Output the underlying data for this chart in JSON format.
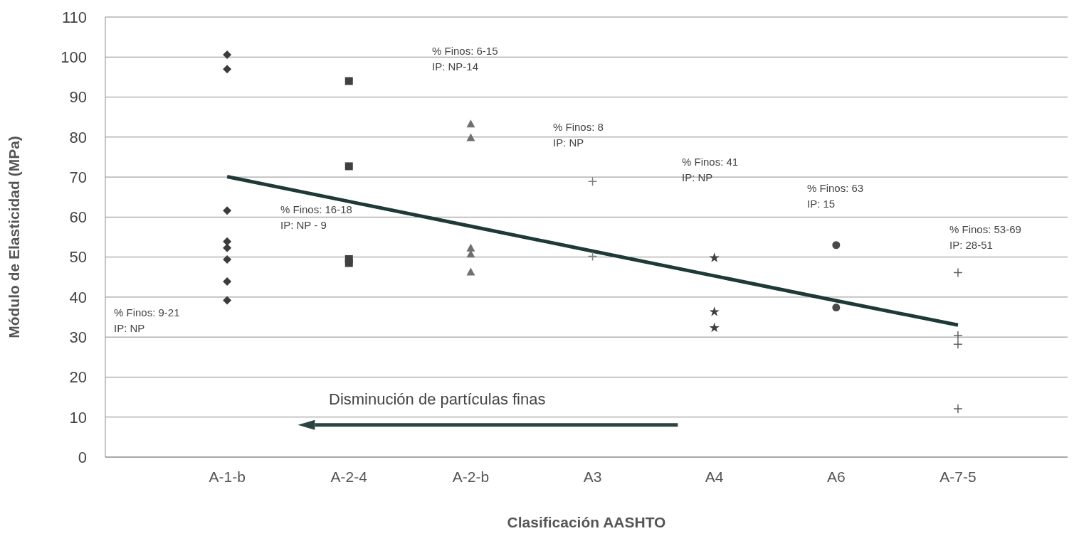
{
  "chart_data": {
    "type": "scatter",
    "xlabel": "Clasificación AASHTO",
    "ylabel": "Módulo de Elasticidad (MPa)",
    "categories": [
      "A-1-b",
      "A-2-4",
      "A-2-b",
      "A3",
      "A4",
      "A6",
      "A-7-5"
    ],
    "ylim": [
      0,
      110
    ],
    "yticks": [
      0,
      10,
      20,
      30,
      40,
      50,
      60,
      70,
      80,
      90,
      100,
      110
    ],
    "grid": "y",
    "legend": false,
    "series": [
      {
        "color": "#3c3c3c",
        "marker": "diamond",
        "x": [
          "A-1-b",
          "A-1-b",
          "A-1-b",
          "A-1-b",
          "A-1-b",
          "A-1-b",
          "A-1-b",
          "A-1-b"
        ],
        "values": [
          100.6,
          97,
          61.6,
          53.9,
          52.3,
          49.4,
          43.9,
          39.2
        ]
      },
      {
        "color": "#404040",
        "marker": "square",
        "x": [
          "A-2-4",
          "A-2-4",
          "A-2-4",
          "A-2-4"
        ],
        "values": [
          94,
          72.7,
          49.5,
          48.5
        ]
      },
      {
        "color": "#707070",
        "marker": "triangle",
        "x": [
          "A-2-b",
          "A-2-b",
          "A-2-b",
          "A-2-b",
          "A-2-b"
        ],
        "values": [
          83.3,
          79.9,
          52.3,
          50.8,
          46.3
        ]
      },
      {
        "color": "#808080",
        "marker": "cross",
        "x": [
          "A3",
          "A3"
        ],
        "values": [
          68.9,
          50.2
        ]
      },
      {
        "color": "#404040",
        "marker": "star",
        "x": [
          "A4",
          "A4",
          "A4"
        ],
        "values": [
          49.8,
          36.3,
          32.3
        ]
      },
      {
        "color": "#4a4a4a",
        "marker": "circle",
        "x": [
          "A6",
          "A6"
        ],
        "values": [
          53,
          37.4
        ]
      },
      {
        "color": "#606060",
        "marker": "cross",
        "x": [
          "A-7-5",
          "A-7-5",
          "A-7-5",
          "A-7-5"
        ],
        "values": [
          46.1,
          30.4,
          28.2,
          12.1
        ]
      },
      {
        "type": "line",
        "color": "#1f3838",
        "marker": "none",
        "values": [
          70.1,
          63.9,
          57.7,
          51.5,
          45.3,
          39.1,
          33
        ]
      }
    ],
    "annotations": [
      "% Finos: 9-21\nIP: NP",
      "% Finos: 16-18\nIP: NP - 9",
      "% Finos: 6-15\nIP: NP-14",
      "% Finos: 8\nIP: NP",
      "% Finos: 41\nIP: NP",
      "% Finos: 63\nIP: 15",
      "% Finos: 53-69\nIP: 28-51",
      "Disminución de partículas finas"
    ]
  }
}
